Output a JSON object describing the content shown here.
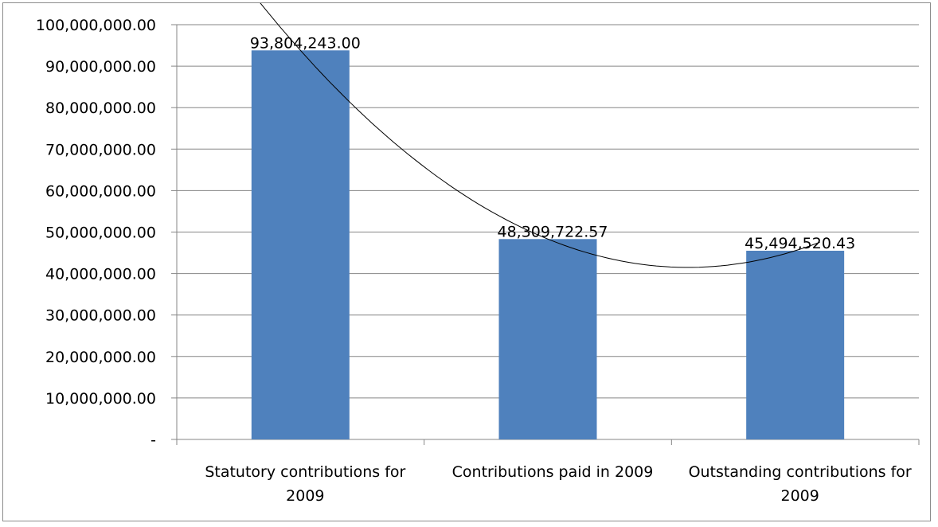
{
  "chart_data": {
    "type": "bar",
    "title": "",
    "xlabel": "",
    "ylabel": "",
    "categories": [
      [
        "Statutory contributions for",
        "2009"
      ],
      [
        "Contributions paid in 2009"
      ],
      [
        "Outstanding contributions for",
        "2009"
      ]
    ],
    "values": [
      93804243.0,
      48309722.57,
      45494520.43
    ],
    "data_labels": [
      "93,804,243.00",
      "48,309,722.57",
      "45,494,520.43"
    ],
    "ylim": [
      0,
      100000000
    ],
    "y_ticks": [
      0,
      10000000,
      20000000,
      30000000,
      40000000,
      50000000,
      60000000,
      70000000,
      80000000,
      90000000,
      100000000
    ],
    "y_tick_labels": [
      "-",
      "10,000,000.00",
      "20,000,000.00",
      "30,000,000.00",
      "40,000,000.00",
      "50,000,000.00",
      "60,000,000.00",
      "70,000,000.00",
      "80,000,000.00",
      "90,000,000.00",
      "100,000,000.00"
    ],
    "grid": true,
    "legend": "none",
    "trendline": "polynomial",
    "colors": {
      "bar": "#4f81bd",
      "grid": "#868686",
      "axis": "#868686",
      "trendline": "#000000"
    }
  }
}
